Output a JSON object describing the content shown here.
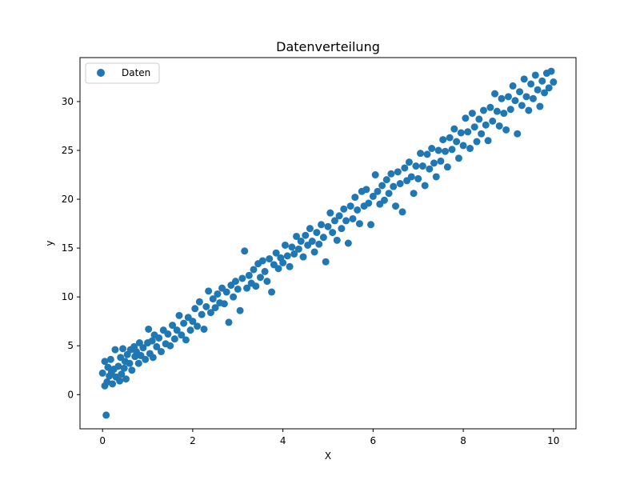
{
  "chart_data": {
    "type": "scatter",
    "title": "Datenverteilung",
    "xlabel": "X",
    "ylabel": "y",
    "xlim": [
      -0.5,
      10.5
    ],
    "ylim": [
      -3.5,
      34.5
    ],
    "xticks": [
      0,
      2,
      4,
      6,
      8,
      10
    ],
    "yticks": [
      0,
      5,
      10,
      15,
      20,
      25,
      30
    ],
    "grid": false,
    "legend_position": "upper-left",
    "colors": {
      "series": "#1f77b4"
    },
    "series": [
      {
        "name": "Daten",
        "points": [
          [
            0.0,
            2.2
          ],
          [
            0.05,
            0.9
          ],
          [
            0.05,
            3.4
          ],
          [
            0.08,
            -2.1
          ],
          [
            0.1,
            1.3
          ],
          [
            0.12,
            2.8
          ],
          [
            0.15,
            1.9
          ],
          [
            0.18,
            3.6
          ],
          [
            0.2,
            2.3
          ],
          [
            0.22,
            1.1
          ],
          [
            0.25,
            2.6
          ],
          [
            0.28,
            4.6
          ],
          [
            0.3,
            1.8
          ],
          [
            0.35,
            2.9
          ],
          [
            0.38,
            1.4
          ],
          [
            0.4,
            3.8
          ],
          [
            0.42,
            2.1
          ],
          [
            0.45,
            4.7
          ],
          [
            0.48,
            2.7
          ],
          [
            0.5,
            3.4
          ],
          [
            0.52,
            1.6
          ],
          [
            0.55,
            4.1
          ],
          [
            0.6,
            3.2
          ],
          [
            0.62,
            4.6
          ],
          [
            0.65,
            2.5
          ],
          [
            0.7,
            4.9
          ],
          [
            0.72,
            3.9
          ],
          [
            0.75,
            4.4
          ],
          [
            0.8,
            3.2
          ],
          [
            0.82,
            5.3
          ],
          [
            0.85,
            4.0
          ],
          [
            0.9,
            4.8
          ],
          [
            0.95,
            3.6
          ],
          [
            1.0,
            5.3
          ],
          [
            1.02,
            6.7
          ],
          [
            1.05,
            4.2
          ],
          [
            1.1,
            5.5
          ],
          [
            1.12,
            3.8
          ],
          [
            1.15,
            6.1
          ],
          [
            1.2,
            4.9
          ],
          [
            1.25,
            5.8
          ],
          [
            1.3,
            4.4
          ],
          [
            1.35,
            6.6
          ],
          [
            1.4,
            5.2
          ],
          [
            1.45,
            6.2
          ],
          [
            1.5,
            5.0
          ],
          [
            1.55,
            7.1
          ],
          [
            1.6,
            5.7
          ],
          [
            1.65,
            6.6
          ],
          [
            1.7,
            8.1
          ],
          [
            1.75,
            6.1
          ],
          [
            1.8,
            7.3
          ],
          [
            1.85,
            5.6
          ],
          [
            1.9,
            7.9
          ],
          [
            1.95,
            6.6
          ],
          [
            2.0,
            7.5
          ],
          [
            2.05,
            8.8
          ],
          [
            2.1,
            7.0
          ],
          [
            2.15,
            9.5
          ],
          [
            2.2,
            8.2
          ],
          [
            2.25,
            6.7
          ],
          [
            2.3,
            9.0
          ],
          [
            2.35,
            10.6
          ],
          [
            2.4,
            8.4
          ],
          [
            2.45,
            9.8
          ],
          [
            2.5,
            8.9
          ],
          [
            2.55,
            10.3
          ],
          [
            2.6,
            9.4
          ],
          [
            2.65,
            10.9
          ],
          [
            2.7,
            9.3
          ],
          [
            2.75,
            10.5
          ],
          [
            2.8,
            7.4
          ],
          [
            2.85,
            11.2
          ],
          [
            2.9,
            10.0
          ],
          [
            2.95,
            11.6
          ],
          [
            3.0,
            10.8
          ],
          [
            3.05,
            8.6
          ],
          [
            3.1,
            11.9
          ],
          [
            3.15,
            14.7
          ],
          [
            3.2,
            10.9
          ],
          [
            3.25,
            12.2
          ],
          [
            3.3,
            11.4
          ],
          [
            3.35,
            12.8
          ],
          [
            3.4,
            11.1
          ],
          [
            3.45,
            13.4
          ],
          [
            3.5,
            12.0
          ],
          [
            3.55,
            13.7
          ],
          [
            3.6,
            12.6
          ],
          [
            3.65,
            11.6
          ],
          [
            3.7,
            13.9
          ],
          [
            3.75,
            10.5
          ],
          [
            3.8,
            13.3
          ],
          [
            3.85,
            14.5
          ],
          [
            3.9,
            12.9
          ],
          [
            3.95,
            14.0
          ],
          [
            4.0,
            13.5
          ],
          [
            4.05,
            15.3
          ],
          [
            4.1,
            14.2
          ],
          [
            4.15,
            13.1
          ],
          [
            4.2,
            15.1
          ],
          [
            4.25,
            14.4
          ],
          [
            4.3,
            16.2
          ],
          [
            4.35,
            14.9
          ],
          [
            4.4,
            15.7
          ],
          [
            4.45,
            14.1
          ],
          [
            4.5,
            16.3
          ],
          [
            4.55,
            15.3
          ],
          [
            4.6,
            17.0
          ],
          [
            4.65,
            15.7
          ],
          [
            4.7,
            14.6
          ],
          [
            4.75,
            16.6
          ],
          [
            4.8,
            15.4
          ],
          [
            4.85,
            17.4
          ],
          [
            4.9,
            16.1
          ],
          [
            4.95,
            13.6
          ],
          [
            5.0,
            17.2
          ],
          [
            5.05,
            18.6
          ],
          [
            5.1,
            16.6
          ],
          [
            5.15,
            17.8
          ],
          [
            5.2,
            15.8
          ],
          [
            5.25,
            18.3
          ],
          [
            5.3,
            17.0
          ],
          [
            5.35,
            19.0
          ],
          [
            5.4,
            17.8
          ],
          [
            5.45,
            15.5
          ],
          [
            5.5,
            19.3
          ],
          [
            5.55,
            18.0
          ],
          [
            5.6,
            20.2
          ],
          [
            5.65,
            18.9
          ],
          [
            5.7,
            17.5
          ],
          [
            5.75,
            20.8
          ],
          [
            5.8,
            19.3
          ],
          [
            5.85,
            21.0
          ],
          [
            5.9,
            19.6
          ],
          [
            5.95,
            17.4
          ],
          [
            6.0,
            20.3
          ],
          [
            6.05,
            22.5
          ],
          [
            6.1,
            20.8
          ],
          [
            6.15,
            19.5
          ],
          [
            6.2,
            21.4
          ],
          [
            6.25,
            19.9
          ],
          [
            6.3,
            22.0
          ],
          [
            6.35,
            20.6
          ],
          [
            6.4,
            22.6
          ],
          [
            6.45,
            21.3
          ],
          [
            6.5,
            19.3
          ],
          [
            6.55,
            22.8
          ],
          [
            6.6,
            21.6
          ],
          [
            6.65,
            18.7
          ],
          [
            6.7,
            23.2
          ],
          [
            6.75,
            21.9
          ],
          [
            6.8,
            23.8
          ],
          [
            6.85,
            22.3
          ],
          [
            6.9,
            20.6
          ],
          [
            6.95,
            23.4
          ],
          [
            7.0,
            22.1
          ],
          [
            7.05,
            24.7
          ],
          [
            7.1,
            23.4
          ],
          [
            7.15,
            21.4
          ],
          [
            7.2,
            24.6
          ],
          [
            7.25,
            23.1
          ],
          [
            7.3,
            25.2
          ],
          [
            7.35,
            23.7
          ],
          [
            7.4,
            22.3
          ],
          [
            7.45,
            25.0
          ],
          [
            7.5,
            23.9
          ],
          [
            7.55,
            26.1
          ],
          [
            7.6,
            24.9
          ],
          [
            7.65,
            23.3
          ],
          [
            7.7,
            26.3
          ],
          [
            7.75,
            25.1
          ],
          [
            7.8,
            27.2
          ],
          [
            7.85,
            25.9
          ],
          [
            7.9,
            24.2
          ],
          [
            7.95,
            26.8
          ],
          [
            8.0,
            25.5
          ],
          [
            8.05,
            28.3
          ],
          [
            8.1,
            26.9
          ],
          [
            8.15,
            25.2
          ],
          [
            8.2,
            28.8
          ],
          [
            8.25,
            27.4
          ],
          [
            8.3,
            25.9
          ],
          [
            8.35,
            28.2
          ],
          [
            8.4,
            26.7
          ],
          [
            8.45,
            29.1
          ],
          [
            8.5,
            27.6
          ],
          [
            8.55,
            26.0
          ],
          [
            8.6,
            29.4
          ],
          [
            8.65,
            28.0
          ],
          [
            8.7,
            30.8
          ],
          [
            8.75,
            29.0
          ],
          [
            8.8,
            27.5
          ],
          [
            8.85,
            30.3
          ],
          [
            8.9,
            28.8
          ],
          [
            8.95,
            27.1
          ],
          [
            9.0,
            30.5
          ],
          [
            9.05,
            29.2
          ],
          [
            9.1,
            31.6
          ],
          [
            9.15,
            30.1
          ],
          [
            9.2,
            26.7
          ],
          [
            9.25,
            31.0
          ],
          [
            9.3,
            29.6
          ],
          [
            9.35,
            32.3
          ],
          [
            9.4,
            30.5
          ],
          [
            9.45,
            29.1
          ],
          [
            9.5,
            31.8
          ],
          [
            9.55,
            30.3
          ],
          [
            9.6,
            32.7
          ],
          [
            9.65,
            31.2
          ],
          [
            9.7,
            29.5
          ],
          [
            9.75,
            32.1
          ],
          [
            9.8,
            30.9
          ],
          [
            9.85,
            32.9
          ],
          [
            9.9,
            31.4
          ],
          [
            9.95,
            33.1
          ],
          [
            10.0,
            32.0
          ]
        ]
      }
    ]
  }
}
